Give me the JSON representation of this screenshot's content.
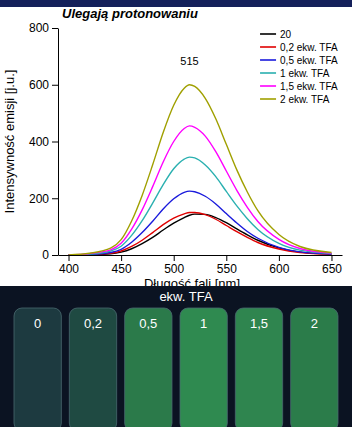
{
  "chart_data": {
    "type": "line",
    "title": "Ulegają protonowaniu",
    "x_label": "Długość fali [nm]",
    "y_label": "Intensywność emisji [j.u.]",
    "x": [
      400,
      420,
      440,
      450,
      460,
      470,
      480,
      490,
      500,
      510,
      515,
      520,
      530,
      540,
      550,
      560,
      570,
      580,
      600,
      620,
      650
    ],
    "xlim": [
      390,
      660
    ],
    "xticks": [
      400,
      450,
      500,
      550,
      600,
      650
    ],
    "ylim": [
      0,
      800
    ],
    "yticks": [
      0,
      200,
      400,
      600,
      800
    ],
    "grid": false,
    "legend": "top-right",
    "annotations": [
      {
        "text": "515",
        "x": 515,
        "y": 600
      }
    ],
    "series": [
      {
        "name": "20",
        "color": "#000000",
        "values": [
          0,
          1,
          4,
          10,
          22,
          40,
          62,
          88,
          112,
          132,
          140,
          144,
          143,
          132,
          114,
          92,
          71,
          52,
          25,
          10,
          3
        ]
      },
      {
        "name": "0,2 ekw. TFA",
        "color": "#e00000",
        "values": [
          0,
          2,
          6,
          14,
          30,
          52,
          79,
          107,
          130,
          145,
          150,
          150,
          142,
          126,
          104,
          82,
          62,
          44,
          21,
          9,
          3
        ]
      },
      {
        "name": "0,5 ekw. TFA",
        "color": "#1a1adc",
        "values": [
          0,
          2,
          9,
          20,
          45,
          79,
          119,
          162,
          198,
          221,
          225,
          223,
          207,
          180,
          146,
          113,
          83,
          59,
          27,
          11,
          3
        ]
      },
      {
        "name": "1 ekw. TFA",
        "color": "#2ab0b0",
        "values": [
          0,
          3,
          14,
          31,
          69,
          121,
          183,
          248,
          304,
          338,
          345,
          342,
          317,
          276,
          224,
          173,
          128,
          90,
          41,
          17,
          5
        ]
      },
      {
        "name": "1,5 ekw. TFA",
        "color": "#ff00ff",
        "values": [
          0,
          5,
          18,
          41,
          91,
          159,
          241,
          328,
          400,
          446,
          455,
          450,
          419,
          364,
          296,
          228,
          168,
          118,
          55,
          23,
          7
        ]
      },
      {
        "name": "2 ekw. TFA",
        "color": "#a0a000",
        "values": [
          0,
          6,
          24,
          54,
          120,
          210,
          318,
          432,
          528,
          588,
          600,
          594,
          552,
          480,
          390,
          300,
          222,
          156,
          72,
          30,
          9
        ]
      }
    ]
  },
  "photo": {
    "title": "ekw. TFA",
    "labels": [
      "0",
      "0,2",
      "0,5",
      "1",
      "1,5",
      "2"
    ]
  }
}
